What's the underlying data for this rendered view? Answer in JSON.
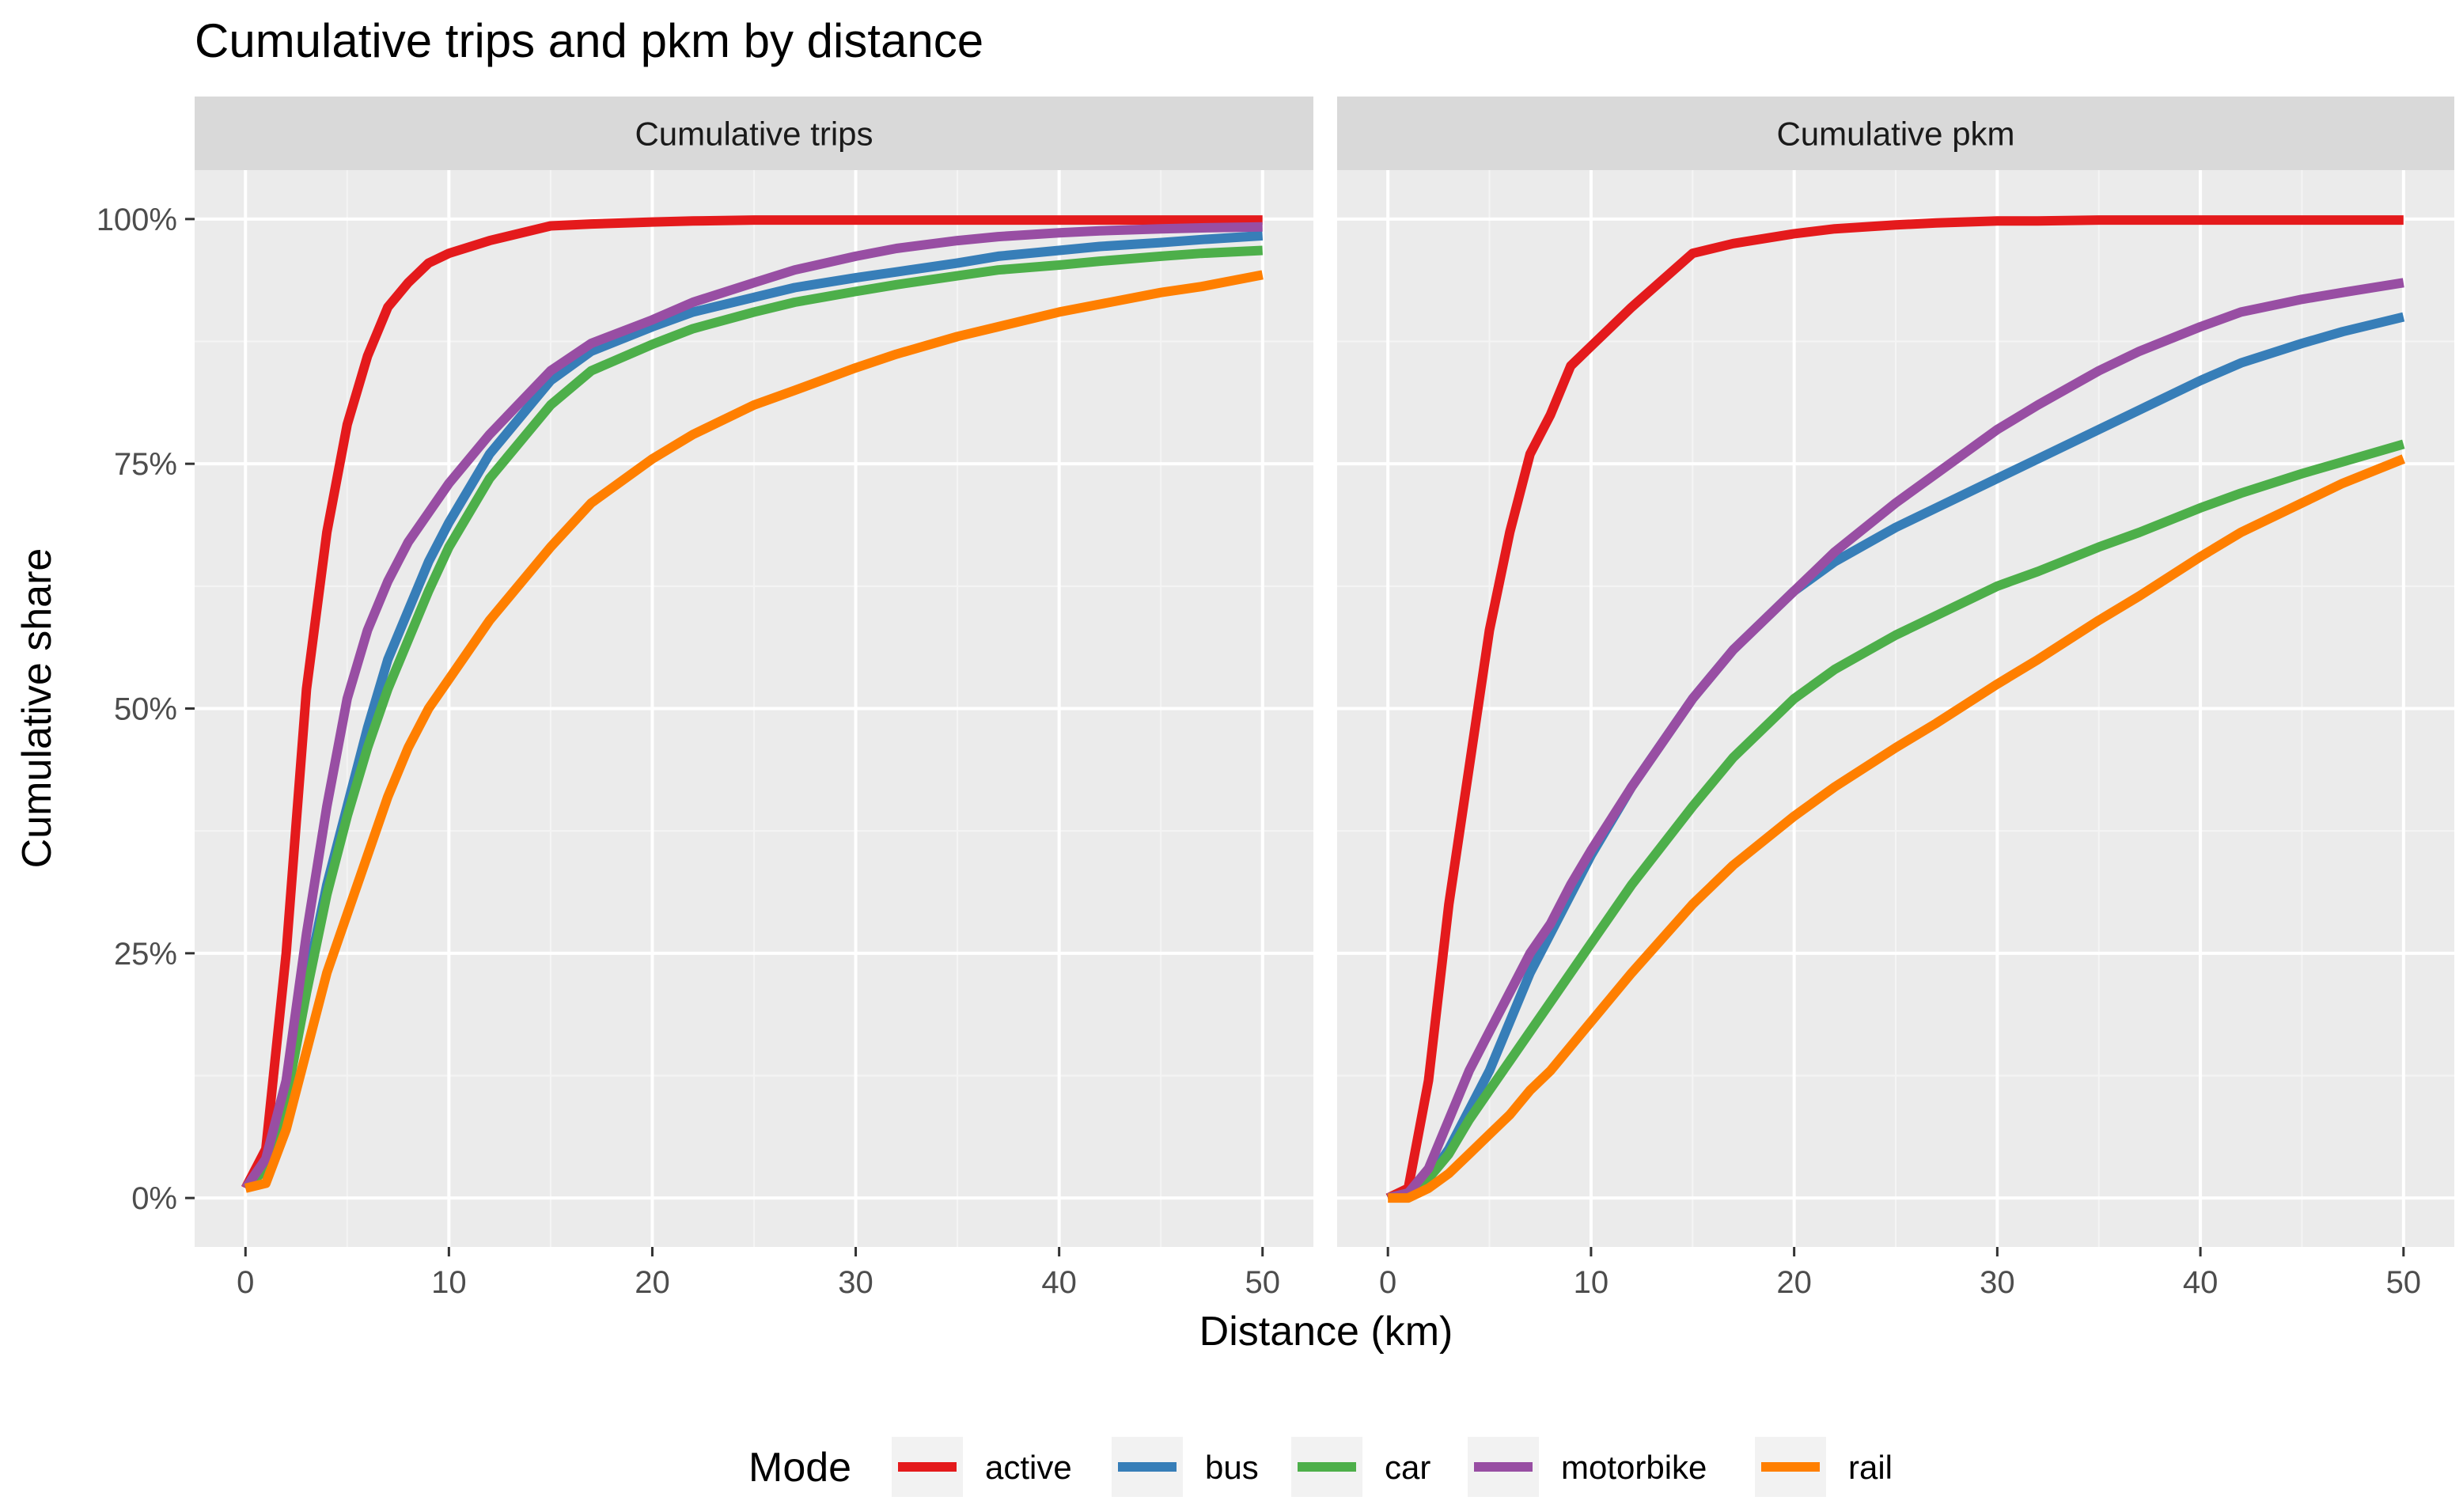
{
  "chart_data": {
    "type": "line",
    "title": "Cumulative trips and pkm by distance",
    "xlabel": "Distance (km)",
    "ylabel": "Cumulative share",
    "xlim": [
      -2.5,
      52.5
    ],
    "ylim": [
      -0.05,
      1.05
    ],
    "x_ticks": [
      0,
      10,
      20,
      30,
      40,
      50
    ],
    "x_tick_labels": [
      "0",
      "10",
      "20",
      "30",
      "40",
      "50"
    ],
    "y_ticks": [
      0,
      0.25,
      0.5,
      0.75,
      1.0
    ],
    "y_tick_labels": [
      "0%",
      "25%",
      "50%",
      "75%",
      "100%"
    ],
    "grid": true,
    "legend": {
      "title": "Mode",
      "position": "bottom",
      "entries": [
        "active",
        "bus",
        "car",
        "motorbike",
        "rail"
      ]
    },
    "colors": {
      "active": "#E41A1C",
      "bus": "#377EB8",
      "car": "#4DAF4A",
      "motorbike": "#984EA3",
      "rail": "#FF7F00"
    },
    "x": [
      0,
      1,
      2,
      3,
      4,
      5,
      6,
      7,
      8,
      9,
      10,
      12,
      15,
      17,
      20,
      22,
      25,
      27,
      30,
      32,
      35,
      37,
      40,
      42,
      45,
      47,
      50
    ],
    "panels": [
      {
        "strip": "Cumulative trips",
        "series": [
          {
            "name": "active",
            "values": [
              0.01,
              0.05,
              0.25,
              0.52,
              0.68,
              0.79,
              0.86,
              0.91,
              0.935,
              0.955,
              0.965,
              0.978,
              0.993,
              0.995,
              0.997,
              0.998,
              0.999,
              0.999,
              0.999,
              0.999,
              0.999,
              0.999,
              0.999,
              0.999,
              0.999,
              0.999,
              0.999
            ]
          },
          {
            "name": "bus",
            "values": [
              0.01,
              0.03,
              0.1,
              0.22,
              0.32,
              0.4,
              0.48,
              0.55,
              0.6,
              0.65,
              0.69,
              0.76,
              0.835,
              0.865,
              0.89,
              0.905,
              0.92,
              0.93,
              0.94,
              0.946,
              0.955,
              0.962,
              0.968,
              0.972,
              0.976,
              0.979,
              0.983
            ]
          },
          {
            "name": "car",
            "values": [
              0.01,
              0.03,
              0.1,
              0.21,
              0.31,
              0.39,
              0.46,
              0.52,
              0.57,
              0.62,
              0.665,
              0.735,
              0.81,
              0.845,
              0.872,
              0.888,
              0.905,
              0.915,
              0.926,
              0.933,
              0.942,
              0.948,
              0.953,
              0.957,
              0.962,
              0.965,
              0.968
            ]
          },
          {
            "name": "motorbike",
            "values": [
              0.01,
              0.04,
              0.12,
              0.27,
              0.4,
              0.51,
              0.58,
              0.63,
              0.67,
              0.7,
              0.73,
              0.78,
              0.845,
              0.873,
              0.897,
              0.915,
              0.935,
              0.948,
              0.962,
              0.97,
              0.978,
              0.982,
              0.986,
              0.988,
              0.99,
              0.991,
              0.992
            ]
          },
          {
            "name": "rail",
            "values": [
              0.01,
              0.015,
              0.07,
              0.15,
              0.23,
              0.29,
              0.35,
              0.41,
              0.46,
              0.5,
              0.53,
              0.59,
              0.665,
              0.71,
              0.755,
              0.78,
              0.81,
              0.825,
              0.848,
              0.862,
              0.88,
              0.89,
              0.905,
              0.913,
              0.925,
              0.931,
              0.943
            ]
          }
        ]
      },
      {
        "strip": "Cumulative pkm",
        "series": [
          {
            "name": "active",
            "values": [
              0.0,
              0.01,
              0.12,
              0.3,
              0.44,
              0.58,
              0.68,
              0.76,
              0.8,
              0.85,
              0.87,
              0.91,
              0.965,
              0.975,
              0.985,
              0.99,
              0.994,
              0.996,
              0.998,
              0.998,
              0.999,
              0.999,
              0.999,
              0.999,
              0.999,
              0.999,
              0.999
            ]
          },
          {
            "name": "bus",
            "values": [
              0.0,
              0.005,
              0.02,
              0.05,
              0.09,
              0.13,
              0.18,
              0.23,
              0.27,
              0.31,
              0.35,
              0.42,
              0.51,
              0.56,
              0.62,
              0.65,
              0.685,
              0.705,
              0.735,
              0.755,
              0.785,
              0.805,
              0.835,
              0.853,
              0.873,
              0.885,
              0.9
            ]
          },
          {
            "name": "car",
            "values": [
              0.0,
              0.005,
              0.02,
              0.045,
              0.08,
              0.11,
              0.14,
              0.17,
              0.2,
              0.23,
              0.26,
              0.32,
              0.4,
              0.45,
              0.51,
              0.54,
              0.575,
              0.595,
              0.625,
              0.64,
              0.665,
              0.68,
              0.705,
              0.72,
              0.74,
              0.752,
              0.77
            ]
          },
          {
            "name": "motorbike",
            "values": [
              0.0,
              0.005,
              0.03,
              0.08,
              0.13,
              0.17,
              0.21,
              0.25,
              0.28,
              0.32,
              0.355,
              0.42,
              0.51,
              0.56,
              0.62,
              0.66,
              0.71,
              0.74,
              0.785,
              0.81,
              0.845,
              0.865,
              0.89,
              0.905,
              0.918,
              0.925,
              0.935
            ]
          },
          {
            "name": "rail",
            "values": [
              0.0,
              0.0,
              0.01,
              0.025,
              0.045,
              0.065,
              0.085,
              0.11,
              0.13,
              0.155,
              0.18,
              0.23,
              0.3,
              0.34,
              0.39,
              0.42,
              0.46,
              0.485,
              0.525,
              0.55,
              0.59,
              0.615,
              0.655,
              0.68,
              0.71,
              0.73,
              0.755
            ]
          }
        ]
      }
    ]
  }
}
